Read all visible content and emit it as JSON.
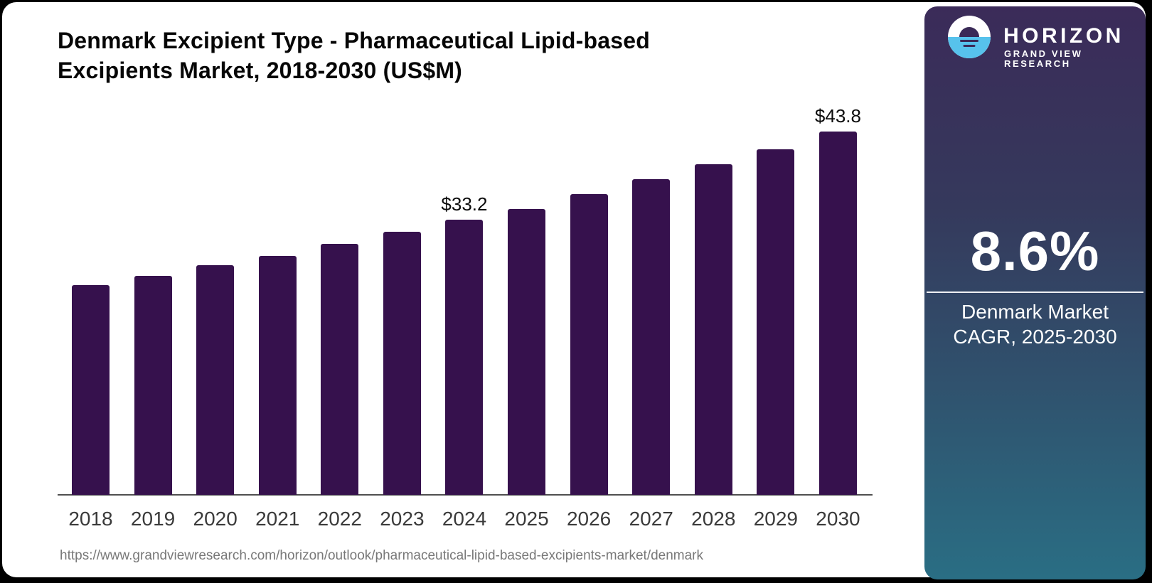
{
  "header": {
    "title": "Denmark Excipient Type - Pharmaceutical Lipid-based\nExcipients Market, 2018-2030 (US$M)"
  },
  "chart_data": {
    "type": "bar",
    "title": "Denmark Excipient Type - Pharmaceutical Lipid-based Excipients Market, 2018-2030 (US$M)",
    "categories": [
      "2018",
      "2019",
      "2020",
      "2021",
      "2022",
      "2023",
      "2024",
      "2025",
      "2026",
      "2027",
      "2028",
      "2029",
      "2030"
    ],
    "values": [
      25.3,
      26.4,
      27.7,
      28.8,
      30.3,
      31.7,
      33.2,
      34.5,
      36.3,
      38.1,
      39.9,
      41.7,
      43.8
    ],
    "data_labels": {
      "2024": "$33.2",
      "2030": "$43.8"
    },
    "xlabel": "",
    "ylabel": "",
    "ylim": [
      0,
      46
    ],
    "grid": false,
    "legend": false,
    "bar_color": "#36114D",
    "axis_color": "#4f4f4f"
  },
  "footer": {
    "source_url": "https://www.grandviewresearch.com/horizon/outlook/pharmaceutical-lipid-based-excipients-market/denmark"
  },
  "sidebar": {
    "brand": {
      "name": "HORIZON",
      "tagline": "GRAND VIEW RESEARCH",
      "logo_blue": "#57c2ec"
    },
    "stat": {
      "value": "8.6%",
      "label": "Denmark Market\nCAGR, 2025-2030"
    },
    "colors": {
      "gradient_top": "#3b2b59",
      "gradient_bottom": "#2a6e84"
    }
  }
}
